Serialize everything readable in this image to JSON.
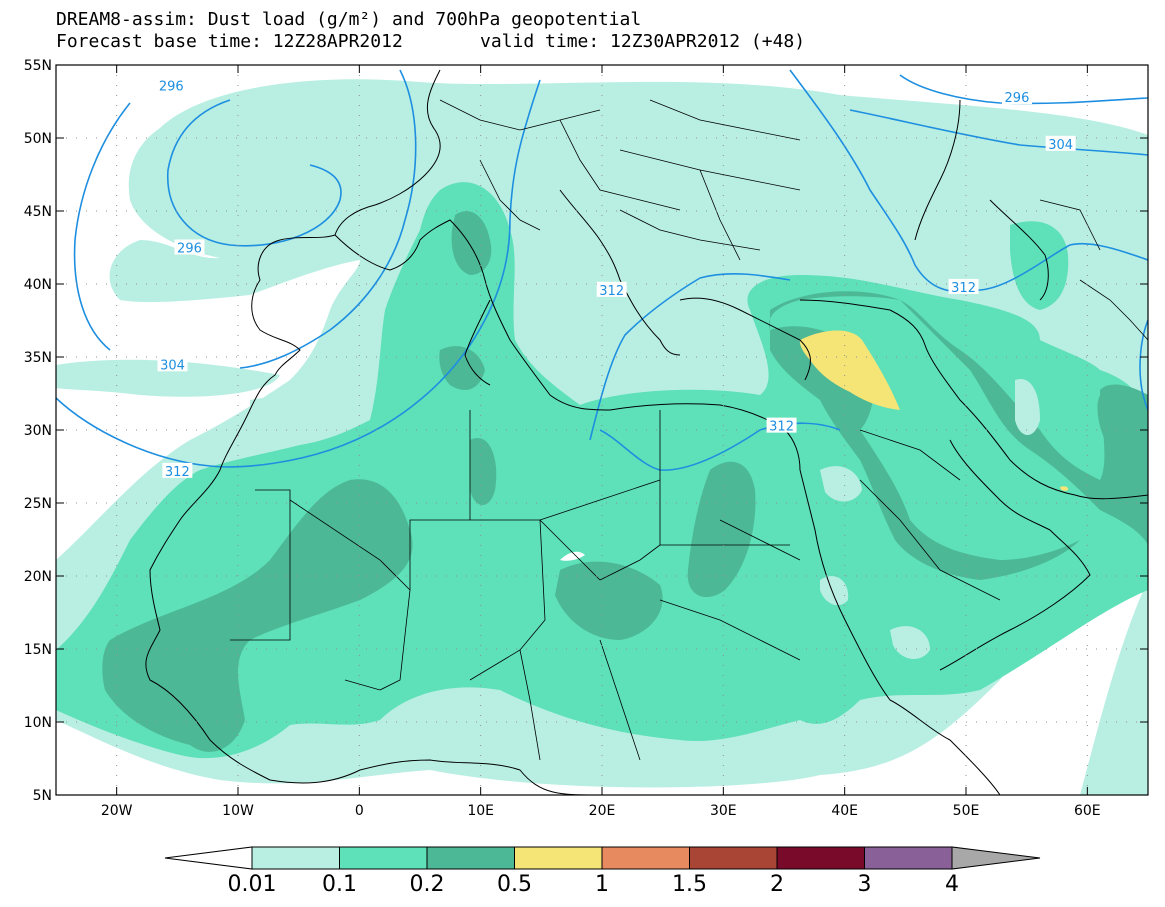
{
  "title_line1": "DREAM8-assim: Dust load (g/m²) and 700hPa geopotential",
  "title_line2_left": "Forecast base time: 12Z28APR2012",
  "title_line2_right": "valid time: 12Z30APR2012 (+48)",
  "map": {
    "lon_range": [
      -25,
      65
    ],
    "lat_range": [
      5,
      55
    ],
    "lon_ticks": [
      {
        "v": -20,
        "label": "20W"
      },
      {
        "v": -10,
        "label": "10W"
      },
      {
        "v": 0,
        "label": "0"
      },
      {
        "v": 10,
        "label": "10E"
      },
      {
        "v": 20,
        "label": "20E"
      },
      {
        "v": 30,
        "label": "30E"
      },
      {
        "v": 40,
        "label": "40E"
      },
      {
        "v": 50,
        "label": "50E"
      },
      {
        "v": 60,
        "label": "60E"
      }
    ],
    "lat_ticks": [
      {
        "v": 55,
        "label": "55N"
      },
      {
        "v": 50,
        "label": "50N"
      },
      {
        "v": 45,
        "label": "45N"
      },
      {
        "v": 40,
        "label": "40N"
      },
      {
        "v": 35,
        "label": "35N"
      },
      {
        "v": 30,
        "label": "30N"
      },
      {
        "v": 25,
        "label": "25N"
      },
      {
        "v": 20,
        "label": "20N"
      },
      {
        "v": 15,
        "label": "15N"
      },
      {
        "v": 10,
        "label": "10N"
      },
      {
        "v": 5,
        "label": "5N"
      }
    ],
    "contour_labels": [
      {
        "text": "296",
        "lon": -15.5,
        "lat": 53.6
      },
      {
        "text": "296",
        "lon": -14,
        "lat": 42.5
      },
      {
        "text": "304",
        "lon": -15.4,
        "lat": 34.5
      },
      {
        "text": "312",
        "lon": -15,
        "lat": 27.2
      },
      {
        "text": "312",
        "lon": 20.8,
        "lat": 39.6
      },
      {
        "text": "312",
        "lon": 34.8,
        "lat": 30.3
      },
      {
        "text": "312",
        "lon": 49.8,
        "lat": 39.8
      },
      {
        "text": "304",
        "lon": 57.8,
        "lat": 49.6
      },
      {
        "text": "296",
        "lon": 54.2,
        "lat": 52.8
      }
    ],
    "colors": {
      "c001": "#b8efe2",
      "c01": "#5ee0b8",
      "c02": "#4cb896",
      "c05": "#f5e577",
      "contour": "#1e8fe0",
      "coast": "#000000"
    }
  },
  "colorbar": {
    "colors": [
      "#b8efe2",
      "#5ee0b8",
      "#4cb896",
      "#f5e577",
      "#e88a5f",
      "#a84535",
      "#7a0a2a",
      "#8a6098"
    ],
    "labels": [
      "0.01",
      "0.1",
      "0.2",
      "0.5",
      "1",
      "1.5",
      "2",
      "3",
      "4"
    ],
    "under_color": "#ffffff",
    "over_color": "#a8a8a8"
  }
}
